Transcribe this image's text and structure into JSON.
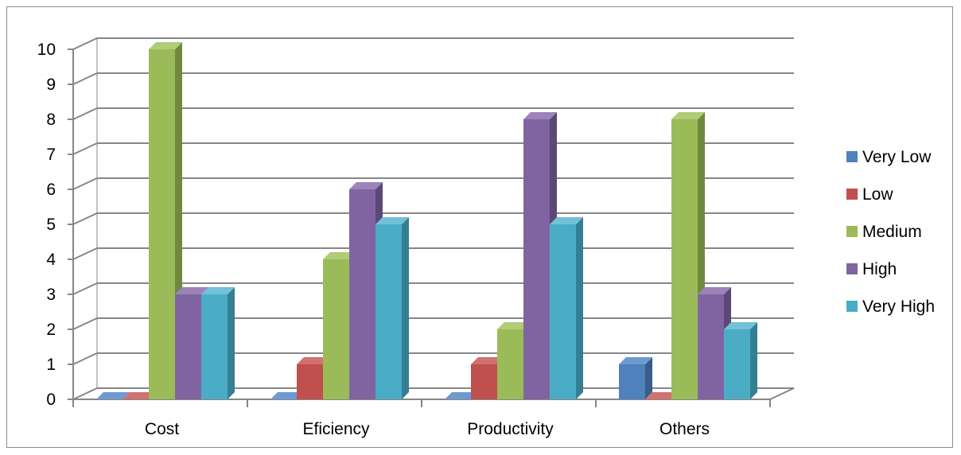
{
  "chart_data": {
    "type": "bar",
    "categories": [
      "Cost",
      "Eficiency",
      "Productivity",
      "Others"
    ],
    "series": [
      {
        "name": "Very Low",
        "values": [
          0,
          0,
          0,
          1
        ],
        "color": "#4F81BD",
        "side": "#385D8A",
        "top": "#6E9AD0"
      },
      {
        "name": "Low",
        "values": [
          0,
          1,
          1,
          0
        ],
        "color": "#C0504D",
        "side": "#8C3A38",
        "top": "#D0726F"
      },
      {
        "name": "Medium",
        "values": [
          10,
          4,
          2,
          8
        ],
        "color": "#9BBB59",
        "side": "#71893F",
        "top": "#B0CC77"
      },
      {
        "name": "High",
        "values": [
          3,
          6,
          8,
          3
        ],
        "color": "#8064A2",
        "side": "#5C4876",
        "top": "#9C84BA"
      },
      {
        "name": "Very High",
        "values": [
          3,
          5,
          5,
          2
        ],
        "color": "#4BACC6",
        "side": "#357F93",
        "top": "#72C1D6"
      }
    ],
    "y_ticks": [
      "0",
      "1",
      "2",
      "3",
      "4",
      "5",
      "6",
      "7",
      "8",
      "9",
      "10"
    ],
    "ylim": [
      0,
      10
    ],
    "grid": true,
    "legend": "right",
    "title": "",
    "xlabel": "",
    "ylabel": ""
  }
}
